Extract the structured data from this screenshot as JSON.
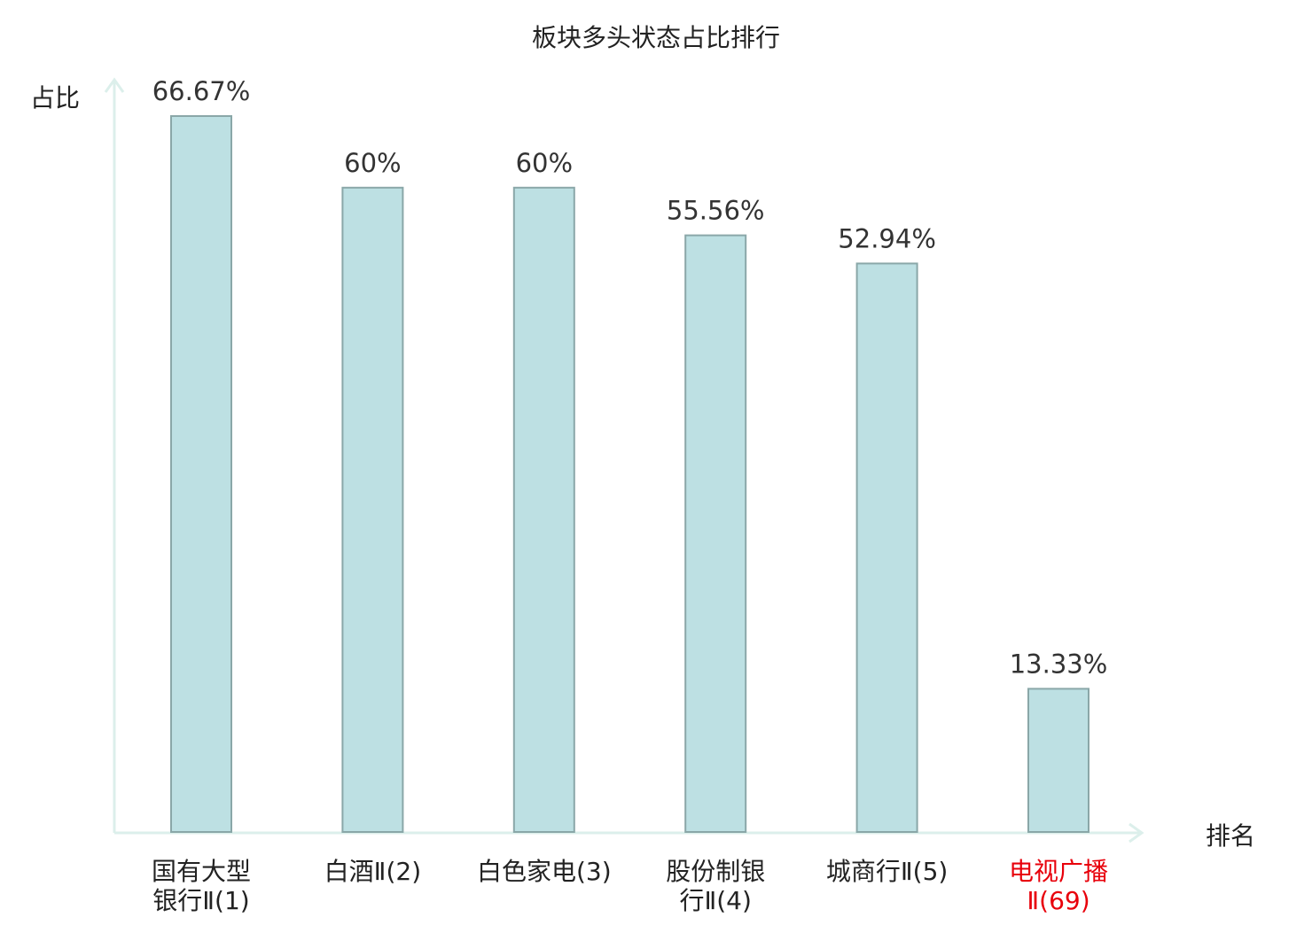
{
  "chart_data": {
    "type": "bar",
    "title": "板块多头状态占比排行",
    "xlabel": "排名",
    "ylabel": "占比",
    "categories": [
      [
        "国有大型",
        "银行Ⅱ(1)"
      ],
      [
        "白酒Ⅱ(2)"
      ],
      [
        "白色家电(3)"
      ],
      [
        "股份制银",
        "行Ⅱ(4)"
      ],
      [
        "城商行Ⅱ(5)"
      ],
      [
        "电视广播",
        "Ⅱ(69)"
      ]
    ],
    "values": [
      66.67,
      60,
      60,
      55.56,
      52.94,
      13.33
    ],
    "value_labels": [
      "66.67%",
      "60%",
      "60%",
      "55.56%",
      "52.94%",
      "13.33%"
    ],
    "highlight_index": 5,
    "ylim": [
      0,
      66.67
    ],
    "grid": false,
    "legend": "none",
    "colors": {
      "bar_fill": "#bde0e3",
      "bar_stroke": "#8aa7a8",
      "axis": "#dcefeb",
      "text": "#333333",
      "highlight_text": "#e8000b"
    }
  }
}
